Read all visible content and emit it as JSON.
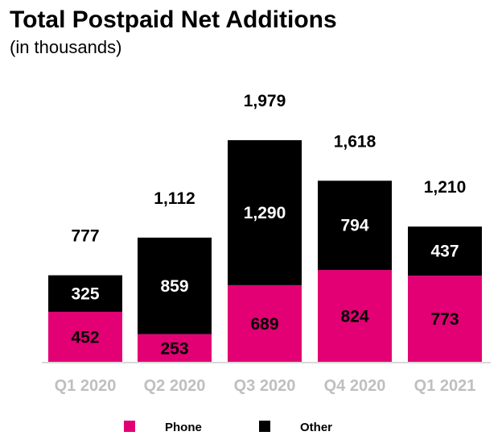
{
  "chart_data": {
    "type": "bar",
    "stacked": true,
    "title": "Total Postpaid Net Additions",
    "subtitle": "(in thousands)",
    "categories": [
      "Q1 2020",
      "Q2 2020",
      "Q3 2020",
      "Q4 2020",
      "Q1 2021"
    ],
    "series": [
      {
        "name": "Phone",
        "values": [
          452,
          253,
          689,
          824,
          773
        ],
        "color": "#e20074"
      },
      {
        "name": "Other",
        "values": [
          325,
          859,
          1290,
          794,
          437
        ],
        "color": "#000000"
      }
    ],
    "totals": [
      777,
      1112,
      1979,
      1618,
      1210
    ],
    "ylim": [
      0,
      2100
    ],
    "legend_position": "bottom",
    "grid": false
  }
}
